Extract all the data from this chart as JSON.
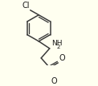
{
  "bg_color": "#fffff0",
  "line_color": "#3a3a3a",
  "text_color": "#1a1a1a",
  "lw": 1.1,
  "figsize": [
    1.22,
    1.08
  ],
  "dpi": 100,
  "cl_label": "Cl",
  "nh2_label": "NH",
  "nh2_sub": "2",
  "o_label": "O",
  "o2_label": "O"
}
